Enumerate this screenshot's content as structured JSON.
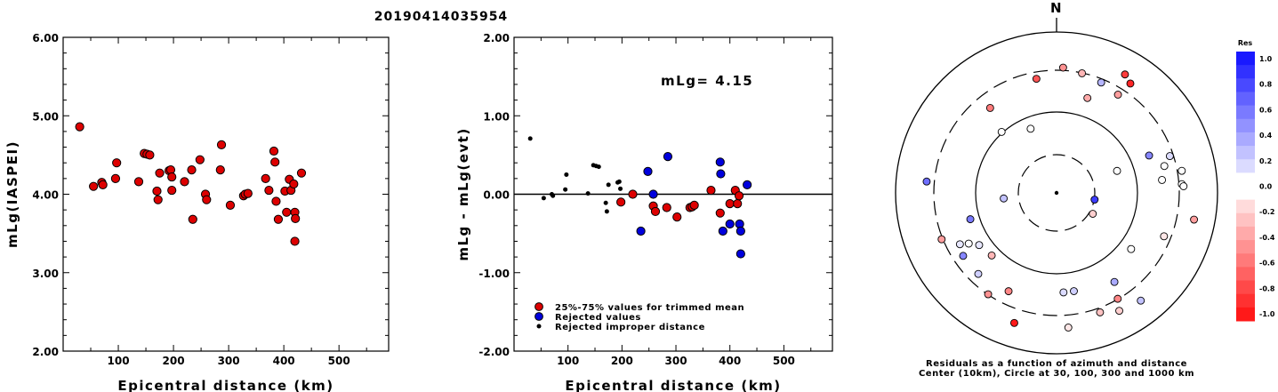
{
  "title": "20190414035954",
  "chart_data": [
    {
      "type": "scatter",
      "ylabel": "mLg(IASPEI)",
      "xlabel": "Epicentral distance (km)",
      "xlim": [
        0,
        590
      ],
      "ylim": [
        2.0,
        6.0
      ],
      "xticks": [
        "100",
        "200",
        "300",
        "400",
        "500"
      ],
      "yticks": [
        "2.00",
        "3.00",
        "4.00",
        "5.00",
        "6.00"
      ],
      "marker_color": "#dd0000",
      "points": [
        [
          30,
          4.86
        ],
        [
          55,
          4.1
        ],
        [
          70,
          4.15
        ],
        [
          72,
          4.12
        ],
        [
          95,
          4.2
        ],
        [
          97,
          4.4
        ],
        [
          137,
          4.16
        ],
        [
          147,
          4.52
        ],
        [
          152,
          4.51
        ],
        [
          157,
          4.5
        ],
        [
          170,
          4.04
        ],
        [
          172,
          3.93
        ],
        [
          175,
          4.27
        ],
        [
          192,
          4.3
        ],
        [
          195,
          4.31
        ],
        [
          197,
          4.22
        ],
        [
          197,
          4.05
        ],
        [
          220,
          4.16
        ],
        [
          233,
          4.31
        ],
        [
          235,
          3.68
        ],
        [
          248,
          4.44
        ],
        [
          258,
          4.0
        ],
        [
          260,
          3.93
        ],
        [
          285,
          4.31
        ],
        [
          287,
          4.63
        ],
        [
          303,
          3.86
        ],
        [
          327,
          3.98
        ],
        [
          330,
          4.0
        ],
        [
          335,
          4.01
        ],
        [
          367,
          4.2
        ],
        [
          373,
          4.05
        ],
        [
          382,
          4.55
        ],
        [
          384,
          4.41
        ],
        [
          386,
          3.91
        ],
        [
          390,
          3.68
        ],
        [
          402,
          4.04
        ],
        [
          405,
          3.77
        ],
        [
          410,
          4.19
        ],
        [
          413,
          4.05
        ],
        [
          418,
          4.13
        ],
        [
          420,
          3.77
        ],
        [
          421,
          3.69
        ],
        [
          420,
          3.4
        ],
        [
          432,
          4.27
        ]
      ]
    },
    {
      "type": "scatter",
      "ylabel": "mLg - mLg(evt)",
      "xlabel": "Epicentral distance (km)",
      "xlim": [
        0,
        590
      ],
      "ylim": [
        -2.0,
        2.0
      ],
      "xticks": [
        "100",
        "200",
        "300",
        "400",
        "500"
      ],
      "yticks": [
        "-2.00",
        "-1.00",
        "0.00",
        "1.00",
        "2.00"
      ],
      "annotation": "mLg= 4.15",
      "reference_line": 0.0,
      "legend": [
        {
          "label": "25%-75% values for trimmed mean",
          "color": "#dd0000",
          "marker": "large"
        },
        {
          "label": "Rejected values",
          "color": "#0000dd",
          "marker": "large"
        },
        {
          "label": "Rejected improper distance",
          "color": "#000000",
          "marker": "small"
        }
      ],
      "series": [
        {
          "name": "25%-75% values for trimmed mean",
          "color": "#dd0000",
          "points": [
            [
              198,
              -0.1
            ],
            [
              220,
              0.0
            ],
            [
              258,
              -0.15
            ],
            [
              262,
              -0.22
            ],
            [
              283,
              -0.17
            ],
            [
              302,
              -0.29
            ],
            [
              326,
              -0.17
            ],
            [
              330,
              -0.16
            ],
            [
              334,
              -0.14
            ],
            [
              365,
              0.05
            ],
            [
              382,
              -0.24
            ],
            [
              400,
              -0.12
            ],
            [
              410,
              0.05
            ],
            [
              414,
              -0.12
            ],
            [
              417,
              -0.02
            ]
          ]
        },
        {
          "name": "Rejected values",
          "color": "#0000dd",
          "points": [
            [
              235,
              -0.47
            ],
            [
              248,
              0.29
            ],
            [
              258,
              0.0
            ],
            [
              285,
              0.48
            ],
            [
              382,
              0.41
            ],
            [
              383,
              0.26
            ],
            [
              387,
              -0.47
            ],
            [
              400,
              -0.38
            ],
            [
              418,
              -0.38
            ],
            [
              420,
              -0.47
            ],
            [
              420,
              -0.76
            ],
            [
              432,
              0.12
            ]
          ]
        },
        {
          "name": "Rejected improper distance",
          "color": "#000000",
          "points": [
            [
              30,
              0.71
            ],
            [
              55,
              -0.05
            ],
            [
              70,
              0.0
            ],
            [
              72,
              -0.02
            ],
            [
              95,
              0.06
            ],
            [
              97,
              0.25
            ],
            [
              137,
              0.01
            ],
            [
              147,
              0.37
            ],
            [
              152,
              0.36
            ],
            [
              157,
              0.35
            ],
            [
              170,
              -0.11
            ],
            [
              172,
              -0.22
            ],
            [
              175,
              0.12
            ],
            [
              192,
              0.15
            ],
            [
              195,
              0.16
            ],
            [
              197,
              0.07
            ]
          ]
        }
      ]
    },
    {
      "type": "polar-scatter",
      "north_label": "N",
      "caption_line1": "Residuals as a function of azimuth and distance",
      "caption_line2": "Center (10km), Circle at 30, 100, 300 and 1000 km",
      "colorbar": {
        "title": "Res",
        "ticks": [
          "1.0",
          "0.8",
          "0.6",
          "0.4",
          "0.2",
          "0.0",
          "-0.2",
          "-0.4",
          "-0.6",
          "-0.8",
          "-1.0"
        ]
      },
      "stations": [
        {
          "az": 3,
          "r": 0.78,
          "res": -0.45
        },
        {
          "az": 350,
          "r": 0.72,
          "res": -0.7
        },
        {
          "az": 12,
          "r": 0.76,
          "res": -0.3
        },
        {
          "az": 22,
          "r": 0.74,
          "res": 0.3
        },
        {
          "az": 30,
          "r": 0.85,
          "res": -0.8
        },
        {
          "az": 34,
          "r": 0.82,
          "res": -0.9
        },
        {
          "az": 32,
          "r": 0.72,
          "res": -0.4
        },
        {
          "az": 18,
          "r": 0.62,
          "res": -0.35
        },
        {
          "az": 322,
          "r": 0.67,
          "res": -0.55
        },
        {
          "az": 338,
          "r": 0.43,
          "res": 0.0
        },
        {
          "az": 68,
          "r": 0.62,
          "res": 0.5
        },
        {
          "az": 72,
          "r": 0.74,
          "res": 0.15
        },
        {
          "az": 76,
          "r": 0.69,
          "res": -0.05
        },
        {
          "az": 80,
          "r": 0.79,
          "res": -0.05
        },
        {
          "az": 83,
          "r": 0.66,
          "res": 0.05
        },
        {
          "az": 86,
          "r": 0.78,
          "res": 0.0
        },
        {
          "az": 87,
          "r": 0.79,
          "res": 0.05
        },
        {
          "az": 70,
          "r": 0.4,
          "res": -0.05
        },
        {
          "az": 101,
          "r": 0.87,
          "res": -0.4
        },
        {
          "az": 112,
          "r": 0.72,
          "res": -0.1
        },
        {
          "az": 127,
          "r": 0.58,
          "res": -0.05
        },
        {
          "az": 120,
          "r": 0.26,
          "res": -0.2
        },
        {
          "az": 100,
          "r": 0.24,
          "res": 0.8
        },
        {
          "az": 142,
          "r": 0.85,
          "res": 0.25
        },
        {
          "az": 150,
          "r": 0.76,
          "res": -0.5
        },
        {
          "az": 152,
          "r": 0.83,
          "res": -0.2
        },
        {
          "az": 147,
          "r": 0.66,
          "res": 0.35
        },
        {
          "az": 160,
          "r": 0.79,
          "res": -0.25
        },
        {
          "az": 170,
          "r": 0.62,
          "res": 0.2
        },
        {
          "az": 175,
          "r": 0.84,
          "res": -0.1
        },
        {
          "az": 176,
          "r": 0.62,
          "res": 0.15
        },
        {
          "az": 198,
          "r": 0.85,
          "res": -0.95
        },
        {
          "az": 206,
          "r": 0.68,
          "res": -0.5
        },
        {
          "az": 214,
          "r": 0.76,
          "res": -0.45
        },
        {
          "az": 224,
          "r": 0.7,
          "res": 0.2
        },
        {
          "az": 226,
          "r": 0.56,
          "res": -0.3
        },
        {
          "az": 236,
          "r": 0.7,
          "res": 0.5
        },
        {
          "az": 236,
          "r": 0.58,
          "res": 0.1
        },
        {
          "az": 240,
          "r": 0.63,
          "res": -0.05
        },
        {
          "az": 242,
          "r": 0.68,
          "res": 0.1
        },
        {
          "az": 248,
          "r": 0.77,
          "res": -0.4
        },
        {
          "az": 253,
          "r": 0.56,
          "res": 0.55
        },
        {
          "az": 264,
          "r": 0.33,
          "res": 0.25
        },
        {
          "az": 275,
          "r": 0.81,
          "res": 0.6
        },
        {
          "az": 318,
          "r": 0.51,
          "res": -0.05
        }
      ]
    }
  ]
}
